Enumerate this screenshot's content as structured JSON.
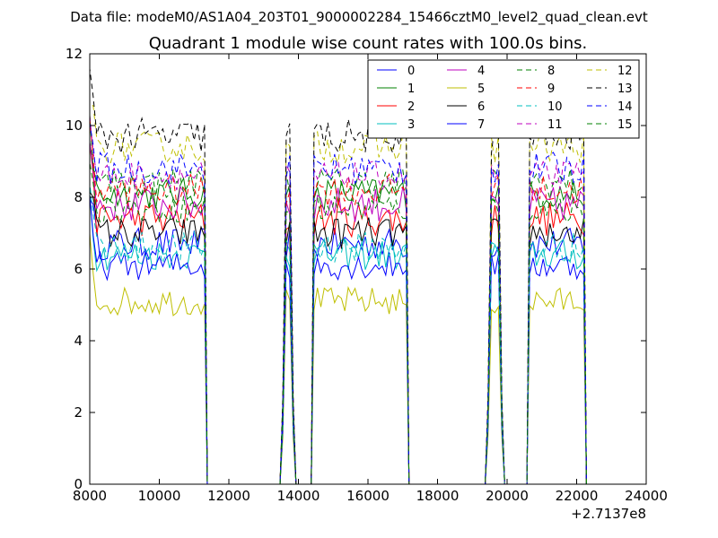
{
  "chart_data": {
    "type": "line",
    "suptitle": "Data file: modeM0/AS1A04_203T01_9000002284_15466cztM0_level2_quad_clean.evt",
    "title": "Quadrant 1 module wise count rates with 100.0s bins.",
    "xlabel": "",
    "ylabel": "",
    "x_offset_label": "+2.7137e8",
    "xlim": [
      8000,
      24000
    ],
    "ylim": [
      0,
      12
    ],
    "xticks": [
      "8000",
      "10000",
      "12000",
      "14000",
      "16000",
      "18000",
      "20000",
      "22000",
      "24000"
    ],
    "yticks": [
      "0",
      "2",
      "4",
      "6",
      "8",
      "10",
      "12"
    ],
    "legend_position": "top-right",
    "segments": [
      {
        "start": 8000,
        "end": 11300
      },
      {
        "start": 13550,
        "end": 13850
      },
      {
        "start": 14450,
        "end": 17100
      },
      {
        "start": 19450,
        "end": 19850
      },
      {
        "start": 20650,
        "end": 22200
      }
    ],
    "series": [
      {
        "name": "0",
        "color": "#0000ff",
        "dash": "solid",
        "level": 6.7,
        "amp": 0.45
      },
      {
        "name": "1",
        "color": "#008000",
        "dash": "solid",
        "level": 8.1,
        "amp": 0.45
      },
      {
        "name": "2",
        "color": "#ff0000",
        "dash": "solid",
        "level": 7.4,
        "amp": 0.5
      },
      {
        "name": "3",
        "color": "#00bfbf",
        "dash": "solid",
        "level": 6.4,
        "amp": 0.45
      },
      {
        "name": "4",
        "color": "#bf00bf",
        "dash": "solid",
        "level": 7.8,
        "amp": 0.5
      },
      {
        "name": "5",
        "color": "#bfbf00",
        "dash": "solid",
        "level": 5.1,
        "amp": 0.4
      },
      {
        "name": "6",
        "color": "#000000",
        "dash": "solid",
        "level": 7.0,
        "amp": 0.45
      },
      {
        "name": "7",
        "color": "#0000ff",
        "dash": "solid",
        "level": 6.1,
        "amp": 0.4
      },
      {
        "name": "8",
        "color": "#008000",
        "dash": "dashed",
        "level": 8.4,
        "amp": 0.45
      },
      {
        "name": "9",
        "color": "#ff0000",
        "dash": "dashed",
        "level": 8.2,
        "amp": 0.45
      },
      {
        "name": "10",
        "color": "#00bfbf",
        "dash": "dashed",
        "level": 6.6,
        "amp": 0.45
      },
      {
        "name": "11",
        "color": "#bf00bf",
        "dash": "dashed",
        "level": 8.6,
        "amp": 0.4
      },
      {
        "name": "12",
        "color": "#bfbf00",
        "dash": "dashed",
        "level": 9.4,
        "amp": 0.45
      },
      {
        "name": "13",
        "color": "#000000",
        "dash": "dashed",
        "level": 9.7,
        "amp": 0.5
      },
      {
        "name": "14",
        "color": "#0000ff",
        "dash": "dashed",
        "level": 8.8,
        "amp": 0.45
      },
      {
        "name": "15",
        "color": "#008000",
        "dash": "dashed",
        "level": 7.7,
        "amp": 0.4
      }
    ]
  }
}
